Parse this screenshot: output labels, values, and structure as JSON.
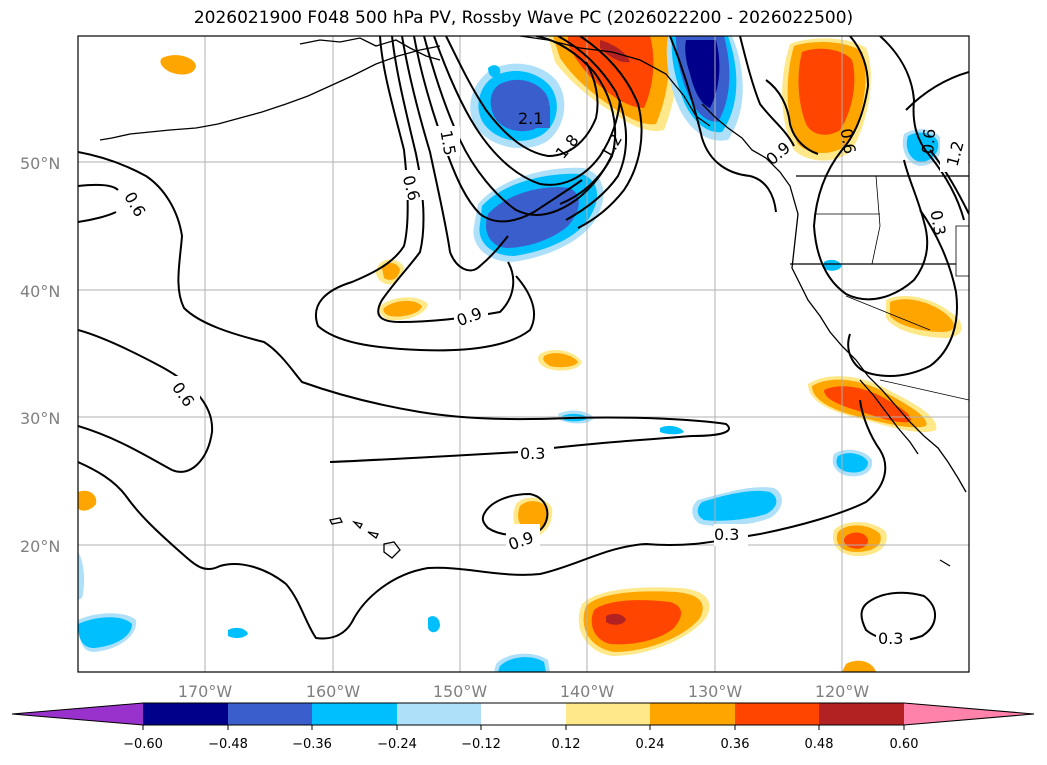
{
  "title": "2026021900 F048 500 hPa PV, Rossby Wave PC (2026022200 - 2026022500)",
  "map": {
    "lon_labels": [
      "170°W",
      "160°W",
      "150°W",
      "140°W",
      "130°W",
      "120°W"
    ],
    "lat_labels": [
      "50°N",
      "40°N",
      "30°N",
      "20°N"
    ],
    "contour_labels": [
      "0.6",
      "0.6",
      "1.5",
      "0.6",
      "2.1",
      "1.8",
      "1.2",
      "0.9",
      "0.9",
      "0.3",
      "0.3",
      "0.9",
      "0.6",
      "1.2",
      "0.6",
      "0.3",
      "0.3"
    ],
    "fill_colors": {
      "pos1": "#ffe88a",
      "pos2": "#ffa500",
      "pos3": "#ff4500",
      "pos4": "#b22222",
      "neg1": "#afe0fa",
      "neg2": "#00bfff",
      "neg3": "#3a5fcd",
      "neg4": "#00008b"
    }
  },
  "colorbar": {
    "ticks": [
      "−0.60",
      "−0.48",
      "−0.36",
      "−0.24",
      "−0.12",
      "0.12",
      "0.24",
      "0.36",
      "0.48",
      "0.60"
    ],
    "colors": [
      "#9932cc",
      "#00008b",
      "#3a5fcd",
      "#00bfff",
      "#afe0fa",
      "#ffffff",
      "#ffe88a",
      "#ffa500",
      "#ff4500",
      "#b22222",
      "#ff82ab"
    ]
  }
}
